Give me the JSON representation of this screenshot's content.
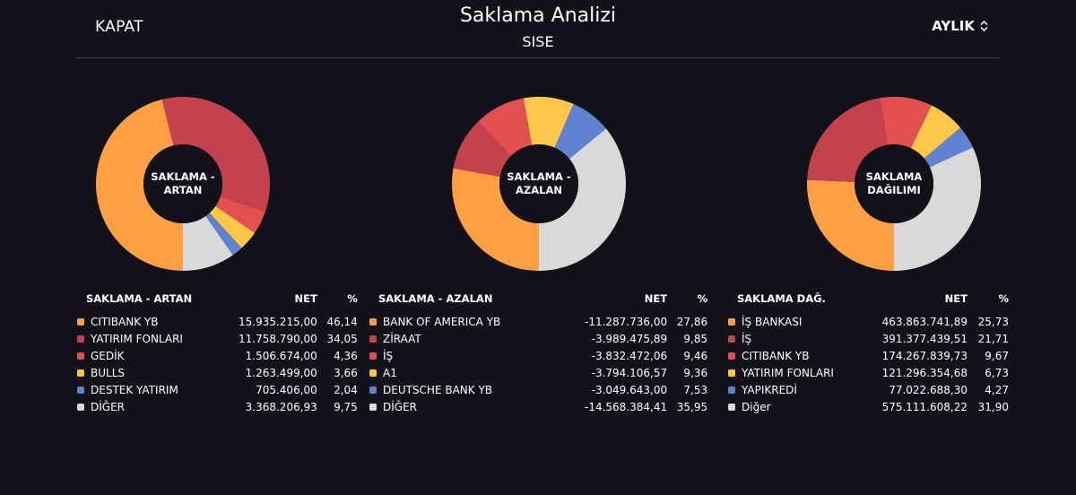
{
  "header": {
    "close_label": "KAPAT",
    "title": "Saklama Analizi",
    "subtitle": "SISE",
    "period_label": "AYLIK"
  },
  "colors": {
    "orange": "#ff9f43",
    "dark_red": "#c4424d",
    "red": "#e2504f",
    "yellow": "#fdc84a",
    "blue": "#5f82d1",
    "gray": "#d9d9d9",
    "background": "#12121a"
  },
  "panels": [
    {
      "donut_label": "SAKLAMA - ARTAN",
      "headers": {
        "name": "SAKLAMA - ARTAN",
        "net": "NET",
        "pct": "%"
      },
      "rows": [
        {
          "name": "CITIBANK YB",
          "net": "15.935.215,00",
          "pct": "46,14",
          "color": "#ff9f43",
          "value": 46.14
        },
        {
          "name": "YATIRIM FONLARI",
          "net": "11.758.790,00",
          "pct": "34,05",
          "color": "#c4424d",
          "value": 34.05
        },
        {
          "name": "GEDİK",
          "net": "1.506.674,00",
          "pct": "4,36",
          "color": "#e2504f",
          "value": 4.36
        },
        {
          "name": "BULLS",
          "net": "1.263.499,00",
          "pct": "3,66",
          "color": "#fdc84a",
          "value": 3.66
        },
        {
          "name": "DESTEK YATIRIM",
          "net": "705.406,00",
          "pct": "2,04",
          "color": "#5f82d1",
          "value": 2.04
        },
        {
          "name": "DİĞER",
          "net": "3.368.206,93",
          "pct": "9,75",
          "color": "#d9d9d9",
          "value": 9.75
        }
      ]
    },
    {
      "donut_label": "SAKLAMA - AZALAN",
      "headers": {
        "name": "SAKLAMA - AZALAN",
        "net": "NET",
        "pct": "%"
      },
      "rows": [
        {
          "name": "BANK OF AMERICA YB",
          "net": "-11.287.736,00",
          "pct": "27,86",
          "color": "#ff9f43",
          "value": 27.86
        },
        {
          "name": "ZİRAAT",
          "net": "-3.989.475,89",
          "pct": "9,85",
          "color": "#c4424d",
          "value": 9.85
        },
        {
          "name": "İŞ",
          "net": "-3.832.472,06",
          "pct": "9,46",
          "color": "#e2504f",
          "value": 9.46
        },
        {
          "name": "A1",
          "net": "-3.794.106,57",
          "pct": "9,36",
          "color": "#fdc84a",
          "value": 9.36
        },
        {
          "name": "DEUTSCHE BANK YB",
          "net": "-3.049.643,00",
          "pct": "7,53",
          "color": "#5f82d1",
          "value": 7.53
        },
        {
          "name": "DİĞER",
          "net": "-14.568.384,41",
          "pct": "35,95",
          "color": "#d9d9d9",
          "value": 35.95
        }
      ]
    },
    {
      "donut_label": "SAKLAMA DAĞILIMI",
      "headers": {
        "name": "SAKLAMA DAĞ.",
        "net": "NET",
        "pct": "%"
      },
      "rows": [
        {
          "name": "İŞ BANKASI",
          "net": "463.863.741,89",
          "pct": "25,73",
          "color": "#ff9f43",
          "value": 25.73
        },
        {
          "name": "İŞ",
          "net": "391.377.439,51",
          "pct": "21,71",
          "color": "#c4424d",
          "value": 21.71
        },
        {
          "name": "CITIBANK YB",
          "net": "174.267.839,73",
          "pct": "9,67",
          "color": "#e2504f",
          "value": 9.67
        },
        {
          "name": "YATIRIM FONLARI",
          "net": "121.296.354,68",
          "pct": "6,73",
          "color": "#fdc84a",
          "value": 6.73
        },
        {
          "name": "YAPIKREDİ",
          "net": "77.022.688,30",
          "pct": "4,27",
          "color": "#5f82d1",
          "value": 4.27
        },
        {
          "name": "Diğer",
          "net": "575.111.608,22",
          "pct": "31,90",
          "color": "#d9d9d9",
          "value": 31.9
        }
      ]
    }
  ]
}
